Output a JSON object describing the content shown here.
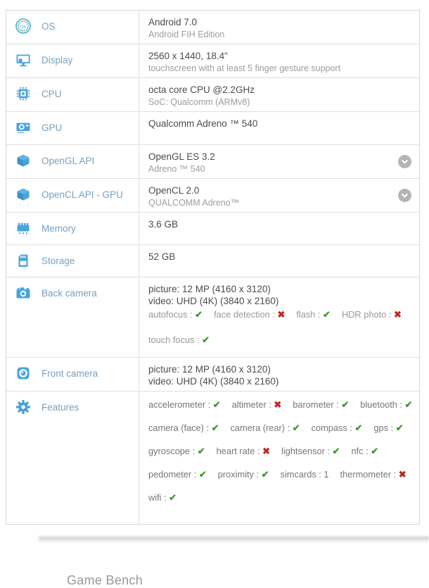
{
  "colors": {
    "accent_blue": "#4aa3dc",
    "os_teal": "#56b7c4",
    "label_blue_gray": "#79a0bd",
    "check_green": "#3e9b2e",
    "cross_red": "#c22727",
    "expand_gray": "#b5b5b5"
  },
  "icons": {
    "yes_glyph": "✔",
    "no_glyph": "✖",
    "expand": "chevron-down"
  },
  "rows": {
    "os": {
      "label": "OS",
      "value": "Android 7.0",
      "sub": "Android FIH Edition"
    },
    "display": {
      "label": "Display",
      "value": "2560 x 1440, 18.4\"",
      "sub": "touchscreen with at least 5 finger gesture support"
    },
    "cpu": {
      "label": "CPU",
      "value": "octa core CPU @2.2GHz",
      "sub": "SoC: Qualcomm (ARMv8)"
    },
    "gpu": {
      "label": "GPU",
      "value": "Qualcomm Adreno ™ 540"
    },
    "opengl_api": {
      "label": "OpenGL API",
      "value": "OpenGL ES 3.2",
      "sub": "Adreno ™ 540"
    },
    "opencl_api": {
      "label": "OpenCL API - GPU",
      "value": "OpenCL 2.0",
      "sub": "QUALCOMM Adreno™"
    },
    "memory": {
      "label": "Memory",
      "value": "3.6 GB"
    },
    "storage": {
      "label": "Storage",
      "value": "52 GB"
    },
    "back_camera": {
      "label": "Back camera",
      "value": "picture: 12 MP (4160 x 3120)",
      "value2": "video: UHD (4K) (3840 x 2160)",
      "feature_lines": [
        [
          {
            "label": "autofocus",
            "status": "yes"
          },
          {
            "label": "face detection",
            "status": "no"
          },
          {
            "label": "flash",
            "status": "yes"
          },
          {
            "label": "HDR photo",
            "status": "no"
          }
        ],
        [
          {
            "label": "touch focus",
            "status": "yes"
          }
        ]
      ]
    },
    "front_camera": {
      "label": "Front camera",
      "value": "picture: 12 MP (4160 x 3120)",
      "value2": "video: UHD (4K) (3840 x 2160)"
    },
    "features": {
      "label": "Features",
      "feature_lines": [
        [
          {
            "label": "accelerometer",
            "status": "yes"
          },
          {
            "label": "altimeter",
            "status": "no"
          },
          {
            "label": "barometer",
            "status": "yes"
          },
          {
            "label": "bluetooth",
            "status": "yes"
          }
        ],
        [
          {
            "label": "camera (face)",
            "status": "yes"
          },
          {
            "label": "camera (rear)",
            "status": "yes"
          },
          {
            "label": "compass",
            "status": "yes"
          },
          {
            "label": "gps",
            "status": "yes"
          }
        ],
        [
          {
            "label": "gyroscope",
            "status": "yes"
          },
          {
            "label": "heart rate",
            "status": "no"
          },
          {
            "label": "lightsensor",
            "status": "yes"
          },
          {
            "label": "nfc",
            "status": "yes"
          }
        ],
        [
          {
            "label": "pedometer",
            "status": "yes"
          },
          {
            "label": "proximity",
            "status": "yes"
          },
          {
            "label": "simcards",
            "value": "1"
          },
          {
            "label": "thermometer",
            "status": "no"
          }
        ],
        [
          {
            "label": "wifi",
            "status": "yes"
          }
        ]
      ]
    }
  },
  "footer": {
    "cropped_heading": "Game Bench"
  }
}
